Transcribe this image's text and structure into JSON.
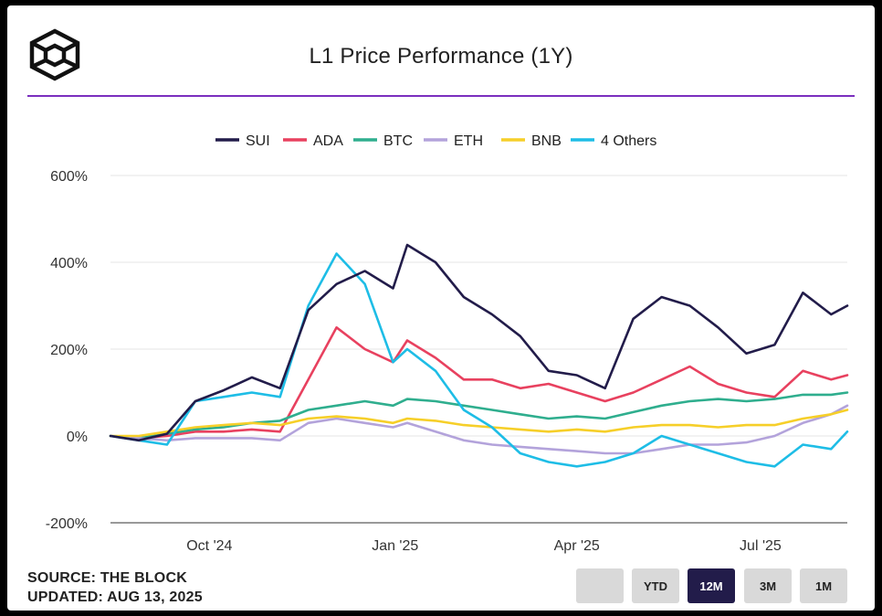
{
  "title": "L1 Price Performance (1Y)",
  "source": {
    "line1": "SOURCE: THE BLOCK",
    "line2": "UPDATED: AUG 13, 2025"
  },
  "range_buttons": [
    {
      "label": "",
      "active": false
    },
    {
      "label": "YTD",
      "active": false
    },
    {
      "label": "12M",
      "active": true
    },
    {
      "label": "3M",
      "active": false
    },
    {
      "label": "1M",
      "active": false
    }
  ],
  "colors": {
    "accent_rule": "#7b2fbe",
    "active_button": "#221c4a"
  },
  "chart_data": {
    "type": "line",
    "title": "L1 Price Performance (1Y)",
    "xlabel": "",
    "ylabel": "",
    "ylim": [
      -200,
      600
    ],
    "yticks": [
      600,
      400,
      200,
      0,
      -200
    ],
    "ytick_labels": [
      "600%",
      "400%",
      "200%",
      "0%",
      "-200%"
    ],
    "xlim": [
      "2024-08-13",
      "2025-08-13"
    ],
    "xticks": [
      {
        "date": "2024-10-01",
        "label": "Oct '24"
      },
      {
        "date": "2025-01-01",
        "label": "Jan '25"
      },
      {
        "date": "2025-04-01",
        "label": "Apr '25"
      },
      {
        "date": "2025-07-01",
        "label": "Jul '25"
      }
    ],
    "grid": "horizontal",
    "legend_position": "top-center",
    "x": [
      "2024-08-13",
      "2024-08-27",
      "2024-09-10",
      "2024-09-24",
      "2024-10-08",
      "2024-10-22",
      "2024-11-05",
      "2024-11-19",
      "2024-12-03",
      "2024-12-17",
      "2024-12-31",
      "2025-01-07",
      "2025-01-21",
      "2025-02-04",
      "2025-02-18",
      "2025-03-04",
      "2025-03-18",
      "2025-04-01",
      "2025-04-15",
      "2025-04-29",
      "2025-05-13",
      "2025-05-27",
      "2025-06-10",
      "2025-06-24",
      "2025-07-08",
      "2025-07-22",
      "2025-08-05",
      "2025-08-13"
    ],
    "series": [
      {
        "name": "SUI",
        "color": "#221c4a",
        "values": [
          0,
          -10,
          5,
          80,
          105,
          135,
          110,
          290,
          350,
          380,
          340,
          440,
          400,
          320,
          280,
          230,
          150,
          140,
          110,
          270,
          320,
          300,
          250,
          190,
          210,
          330,
          280,
          300
        ]
      },
      {
        "name": "ADA",
        "color": "#e8415f",
        "values": [
          0,
          -5,
          0,
          10,
          10,
          15,
          10,
          130,
          250,
          200,
          170,
          220,
          180,
          130,
          130,
          110,
          120,
          100,
          80,
          100,
          130,
          160,
          120,
          100,
          90,
          150,
          130,
          140
        ]
      },
      {
        "name": "BTC",
        "color": "#2fae8e",
        "values": [
          0,
          -5,
          5,
          15,
          20,
          30,
          35,
          60,
          70,
          80,
          70,
          85,
          80,
          70,
          60,
          50,
          40,
          45,
          40,
          55,
          70,
          80,
          85,
          80,
          85,
          95,
          95,
          100
        ]
      },
      {
        "name": "ETH",
        "color": "#b3a3db",
        "values": [
          0,
          -5,
          -10,
          -5,
          -5,
          -5,
          -10,
          30,
          40,
          30,
          20,
          30,
          10,
          -10,
          -20,
          -25,
          -30,
          -35,
          -40,
          -40,
          -30,
          -20,
          -20,
          -15,
          0,
          30,
          50,
          70
        ]
      },
      {
        "name": "BNB",
        "color": "#f6cf29",
        "values": [
          0,
          0,
          10,
          20,
          25,
          30,
          25,
          40,
          45,
          40,
          30,
          40,
          35,
          25,
          20,
          15,
          10,
          15,
          10,
          20,
          25,
          25,
          20,
          25,
          25,
          40,
          50,
          60
        ]
      },
      {
        "name": "4 Others",
        "color": "#1ebde6",
        "values": [
          0,
          -10,
          -20,
          80,
          90,
          100,
          90,
          300,
          420,
          350,
          170,
          200,
          150,
          60,
          20,
          -40,
          -60,
          -70,
          -60,
          -40,
          0,
          -20,
          -40,
          -60,
          -70,
          -20,
          -30,
          10
        ]
      }
    ]
  }
}
